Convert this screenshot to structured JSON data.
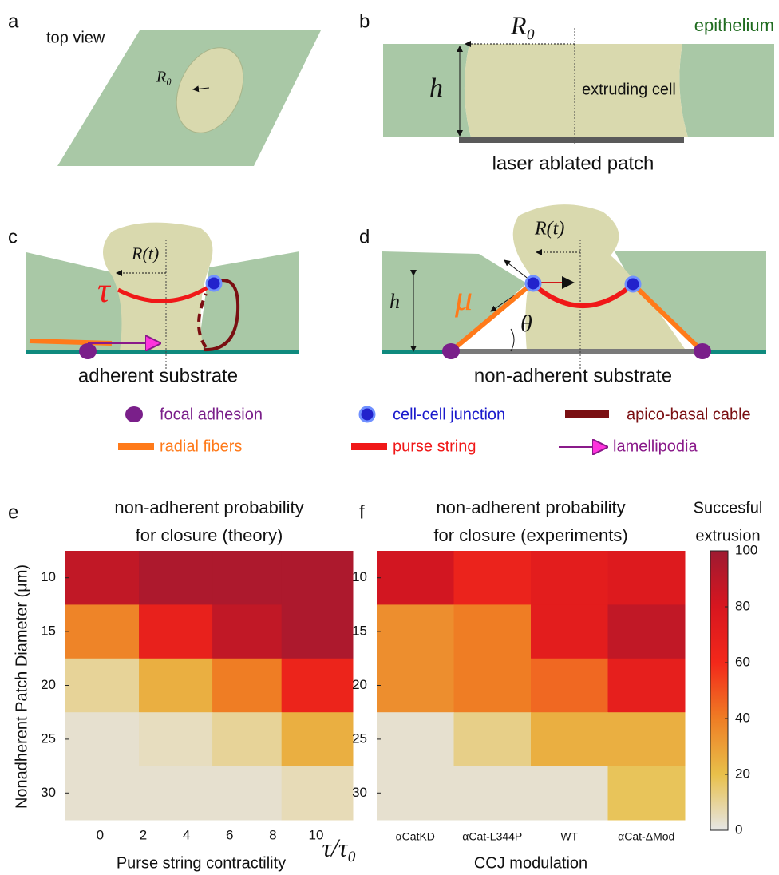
{
  "panels": {
    "a": {
      "letter": "a",
      "caption": "top view",
      "radius": "R₀"
    },
    "b": {
      "letter": "b",
      "radius": "R₀",
      "tissue": "epithelium",
      "height": "h",
      "cell": "extruding cell",
      "patch": "laser ablated patch"
    },
    "c": {
      "letter": "c",
      "radius": "R(t)",
      "tension": "τ",
      "substrate": "adherent substrate"
    },
    "d": {
      "letter": "d",
      "radius": "R(t)",
      "height": "h",
      "stress": "μ",
      "angle": "θ",
      "substrate": "non-adherent substrate"
    },
    "e": {
      "letter": "e"
    },
    "f": {
      "letter": "f"
    }
  },
  "legend": [
    "focal adhesion",
    "cell-cell junction",
    "apico-basal cable",
    "radial fibers",
    "purse string",
    "lamellipodia"
  ],
  "y_label": "Nonadherent Patch Diameter (μm)",
  "colorbar": {
    "title": [
      "Succesful",
      "extrusion"
    ],
    "lim": [
      0,
      100
    ],
    "ticks": [
      0,
      20,
      40,
      60,
      80,
      100
    ],
    "colors": [
      "#e6e6e6",
      "#e8c04a",
      "#ef7d24",
      "#f3281a",
      "#d8161f",
      "#9e1a31"
    ]
  },
  "chart_data": [
    {
      "type": "heatmap",
      "title": [
        "non-adherent probability",
        "for closure (theory)"
      ],
      "x_label": "Purse string contractility",
      "x_symbol": "τ/τ₀",
      "xbins": [
        -1.6,
        1.8,
        5.2,
        8.4,
        11.7
      ],
      "xlim": [
        -1.6,
        11.7
      ],
      "xticks": [
        0,
        2,
        4,
        6,
        8,
        10
      ],
      "y": [
        10,
        15,
        20,
        25,
        30
      ],
      "ylim": [
        7.5,
        32.5
      ],
      "yticks": [
        10,
        15,
        20,
        25,
        30
      ],
      "values": [
        [
          88,
          95,
          95,
          95
        ],
        [
          38,
          68,
          88,
          95
        ],
        [
          10,
          25,
          40,
          65
        ],
        [
          3,
          5,
          10,
          25
        ],
        [
          3,
          3,
          3,
          6
        ]
      ]
    },
    {
      "type": "heatmap",
      "title": [
        "non-adherent probability",
        "for closure (experiments)"
      ],
      "x_label": "CCJ modulation",
      "categories": [
        "αCatKD",
        "αCat-L344P",
        "WT",
        "αCat-ΔMod"
      ],
      "y": [
        10,
        15,
        20,
        25,
        30
      ],
      "ylim": [
        7.5,
        32.5
      ],
      "yticks": [
        10,
        15,
        20,
        25,
        30
      ],
      "values": [
        [
          82,
          66,
          72,
          76
        ],
        [
          35,
          40,
          72,
          88
        ],
        [
          35,
          40,
          45,
          70
        ],
        [
          3,
          12,
          25,
          25
        ],
        [
          3,
          3,
          3,
          18
        ]
      ]
    }
  ]
}
